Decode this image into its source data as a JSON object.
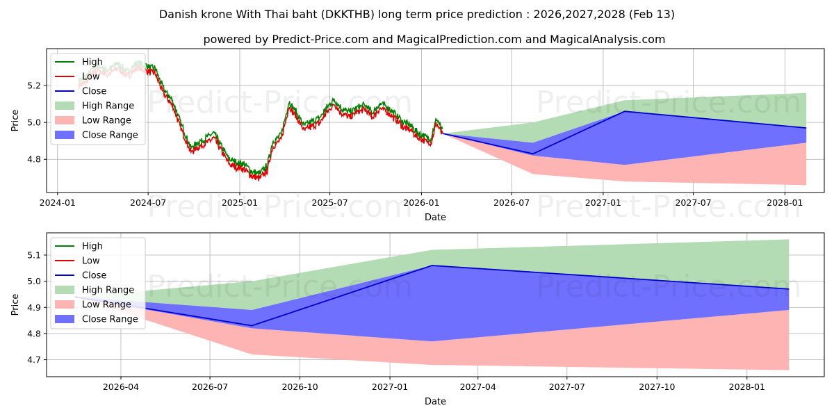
{
  "title_line1": "Danish krone With Thai baht (DKKTHB) long term price prediction : 2026,2027,2028 (Feb 13)",
  "title_line2": "powered by Predict-Price.com and MagicalPrediction.com and MagicalAnalysis.com",
  "watermark": "Predict-Price.com",
  "colors": {
    "high": "#008000",
    "low": "#e00000",
    "close": "#0000cc",
    "high_range": "#b4dcb4",
    "low_range": "#ffb4b4",
    "close_range": "#7070ff"
  },
  "legend": [
    "High",
    "Low",
    "Close",
    "High Range",
    "Low Range",
    "Close Range"
  ],
  "chart_data": [
    {
      "type": "line",
      "name": "history-and-forecast",
      "xlabel": "Date",
      "ylabel": "Price",
      "xlim": [
        "2023-12-10",
        "2028-03-20"
      ],
      "ylim": [
        4.62,
        5.4
      ],
      "legend_position": "top-left",
      "grid": true,
      "x_ticks": [
        "2024-01",
        "2024-07",
        "2025-01",
        "2025-07",
        "2026-01",
        "2026-07",
        "2027-01",
        "2027-07",
        "2028-01"
      ],
      "y_ticks": [
        "4.8",
        "5.0",
        "5.2"
      ],
      "history_anchors": [
        [
          "2024-02-13",
          5.21
        ],
        [
          "2024-03-01",
          5.24
        ],
        [
          "2024-03-20",
          5.3
        ],
        [
          "2024-04-10",
          5.27
        ],
        [
          "2024-05-01",
          5.31
        ],
        [
          "2024-05-20",
          5.26
        ],
        [
          "2024-06-10",
          5.31
        ],
        [
          "2024-07-01",
          5.29
        ],
        [
          "2024-07-15",
          5.28
        ],
        [
          "2024-08-01",
          5.17
        ],
        [
          "2024-08-20",
          5.1
        ],
        [
          "2024-09-05",
          4.98
        ],
        [
          "2024-09-25",
          4.85
        ],
        [
          "2024-10-10",
          4.88
        ],
        [
          "2024-10-25",
          4.9
        ],
        [
          "2024-11-10",
          4.93
        ],
        [
          "2024-11-25",
          4.86
        ],
        [
          "2024-12-10",
          4.79
        ],
        [
          "2024-12-25",
          4.77
        ],
        [
          "2025-01-10",
          4.76
        ],
        [
          "2025-01-25",
          4.72
        ],
        [
          "2025-02-10",
          4.71
        ],
        [
          "2025-02-25",
          4.75
        ],
        [
          "2025-03-08",
          4.88
        ],
        [
          "2025-03-25",
          4.92
        ],
        [
          "2025-04-10",
          5.1
        ],
        [
          "2025-04-25",
          5.04
        ],
        [
          "2025-05-10",
          4.97
        ],
        [
          "2025-05-25",
          4.99
        ],
        [
          "2025-06-10",
          5.01
        ],
        [
          "2025-06-25",
          5.07
        ],
        [
          "2025-07-10",
          5.11
        ],
        [
          "2025-07-25",
          5.06
        ],
        [
          "2025-08-10",
          5.04
        ],
        [
          "2025-08-25",
          5.07
        ],
        [
          "2025-09-10",
          5.08
        ],
        [
          "2025-09-25",
          5.04
        ],
        [
          "2025-10-10",
          5.09
        ],
        [
          "2025-10-25",
          5.07
        ],
        [
          "2025-11-10",
          5.03
        ],
        [
          "2025-11-25",
          4.99
        ],
        [
          "2025-12-10",
          4.97
        ],
        [
          "2025-12-25",
          4.93
        ],
        [
          "2026-01-10",
          4.91
        ],
        [
          "2026-01-20",
          4.9
        ],
        [
          "2026-01-31",
          5.01
        ],
        [
          "2026-02-13",
          4.94
        ]
      ],
      "forecast_dates": [
        "2026-02-13",
        "2026-08-13",
        "2027-02-13",
        "2028-02-13"
      ],
      "forecast_close": [
        4.94,
        4.83,
        5.06,
        4.97
      ],
      "high_range": {
        "upper": [
          4.94,
          5.0,
          5.12,
          5.16
        ],
        "lower": [
          4.94,
          4.89,
          5.06,
          4.97
        ]
      },
      "low_range": {
        "upper": [
          4.94,
          4.82,
          4.77,
          4.89
        ],
        "lower": [
          4.94,
          4.72,
          4.68,
          4.66
        ]
      },
      "close_range": {
        "upper": [
          4.94,
          4.89,
          5.06,
          4.97
        ],
        "lower": [
          4.94,
          4.82,
          4.77,
          4.89
        ]
      }
    },
    {
      "type": "line",
      "name": "forecast-zoom",
      "xlabel": "Date",
      "ylabel": "Price",
      "xlim": [
        "2026-01-15",
        "2028-03-20"
      ],
      "ylim": [
        4.635,
        5.185
      ],
      "legend_position": "top-left",
      "grid": true,
      "x_ticks": [
        "2026-04",
        "2026-07",
        "2026-10",
        "2027-01",
        "2027-04",
        "2027-07",
        "2027-10",
        "2028-01"
      ],
      "y_ticks": [
        "4.7",
        "4.8",
        "4.9",
        "5.0",
        "5.1"
      ],
      "forecast_dates": [
        "2026-02-13",
        "2026-08-13",
        "2027-02-13",
        "2028-02-13"
      ],
      "forecast_close": [
        4.94,
        4.83,
        5.06,
        4.97
      ],
      "high_range": {
        "upper": [
          4.94,
          5.0,
          5.12,
          5.16
        ],
        "lower": [
          4.94,
          4.89,
          5.06,
          4.97
        ]
      },
      "low_range": {
        "upper": [
          4.94,
          4.82,
          4.77,
          4.89
        ],
        "lower": [
          4.94,
          4.72,
          4.68,
          4.66
        ]
      },
      "close_range": {
        "upper": [
          4.94,
          4.89,
          5.06,
          4.97
        ],
        "lower": [
          4.94,
          4.82,
          4.77,
          4.89
        ]
      }
    }
  ]
}
